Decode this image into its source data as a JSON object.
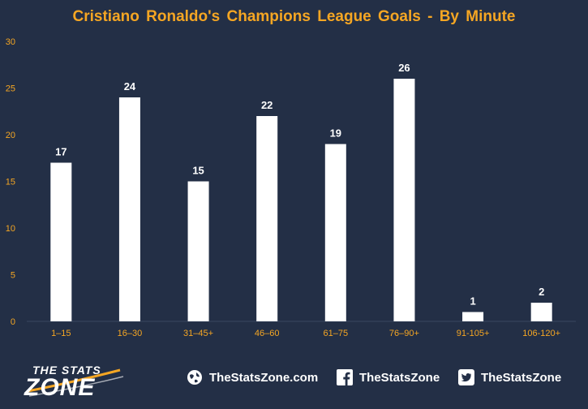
{
  "title": "Cristiano  Ronaldo's  Champions  League  Goals  -  By  Minute",
  "colors": {
    "background": "#232f46",
    "title": "#f5a623",
    "tick_labels": "#f5a623",
    "bars": "#ffffff",
    "value_labels": "#ffffff"
  },
  "chart_data": {
    "type": "bar",
    "title": "Cristiano  Ronaldo's  Champions  League  Goals  -  By  Minute",
    "xlabel": "",
    "ylabel": "",
    "categories": [
      "1–15",
      "16–30",
      "31–45+",
      "46–60",
      "61–75",
      "76–90+",
      "91-105+",
      "106-120+"
    ],
    "values": [
      17,
      24,
      15,
      22,
      19,
      26,
      1,
      2
    ],
    "ylim": [
      0,
      30
    ],
    "yticks": [
      0,
      5,
      10,
      15,
      20,
      25,
      30
    ],
    "grid": false,
    "legend": "none",
    "data_labels": true
  },
  "footer": {
    "logo_line1": "THE STATS",
    "logo_line2": "ZONE",
    "website": "TheStatsZone.com",
    "facebook": "TheStatsZone",
    "twitter": "TheStatsZone",
    "icons": [
      "globe-icon",
      "facebook-icon",
      "twitter-icon"
    ]
  }
}
